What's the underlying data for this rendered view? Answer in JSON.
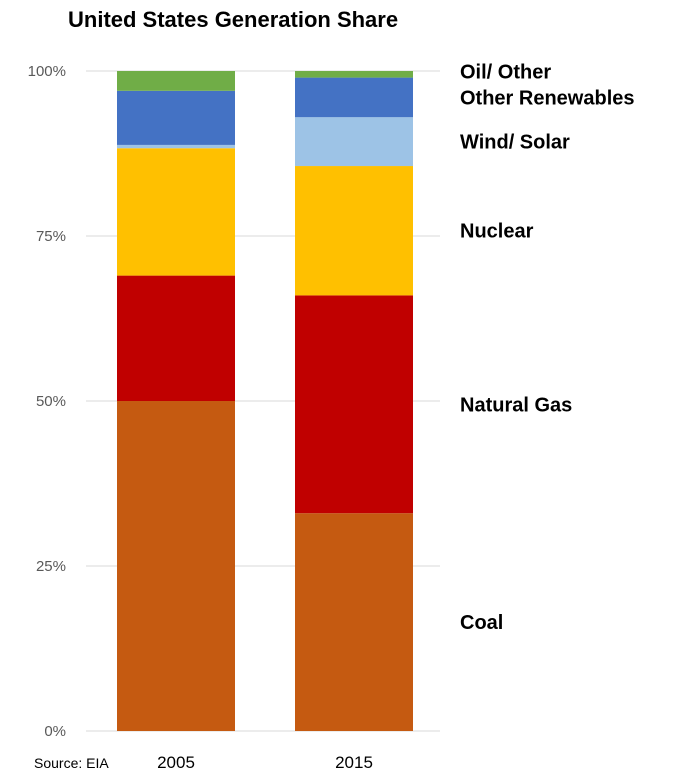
{
  "chart_data": {
    "type": "bar",
    "stacked": true,
    "title": "United States Generation Share",
    "source": "Source: EIA",
    "categories": [
      "2005",
      "2015"
    ],
    "ylim": [
      0,
      100
    ],
    "yticks": [
      "0%",
      "25%",
      "50%",
      "75%",
      "100%"
    ],
    "yticks_values": [
      0,
      25,
      50,
      75,
      100
    ],
    "grid": true,
    "legend_placement": "right",
    "series": [
      {
        "name": "Coal",
        "values": [
          50,
          33
        ],
        "color": "#c55a11"
      },
      {
        "name": "Natural Gas",
        "values": [
          19,
          33
        ],
        "color": "#c00000"
      },
      {
        "name": "Nuclear",
        "values": [
          19.3,
          19.6
        ],
        "color": "#ffc000"
      },
      {
        "name": "Wind/ Solar",
        "values": [
          0.5,
          7.4
        ],
        "color": "#9dc3e6"
      },
      {
        "name": "Other Renewables",
        "values": [
          8.2,
          6.0
        ],
        "color": "#4472c4"
      },
      {
        "name": "Oil/ Other",
        "values": [
          3,
          1
        ],
        "color": "#70ad47"
      }
    ]
  }
}
